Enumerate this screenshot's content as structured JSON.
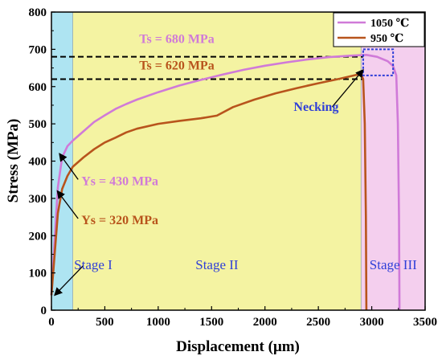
{
  "chart_data": {
    "type": "line",
    "xlabel": "Displacement (μm)",
    "ylabel": "Stress (MPa)",
    "xlim": [
      0,
      3500
    ],
    "ylim": [
      0,
      800
    ],
    "xticks": [
      "0",
      "500",
      "1000",
      "1500",
      "2000",
      "2500",
      "3000",
      "3500"
    ],
    "yticks": [
      "0",
      "100",
      "200",
      "300",
      "400",
      "500",
      "600",
      "700",
      "800"
    ],
    "grid": false,
    "legend_position": "top-right",
    "series": [
      {
        "name": "1050 ℃",
        "color": "#d07ad8",
        "points": [
          [
            0,
            40
          ],
          [
            30,
            190
          ],
          [
            60,
            330
          ],
          [
            100,
            410
          ],
          [
            150,
            440
          ],
          [
            200,
            455
          ],
          [
            300,
            480
          ],
          [
            400,
            505
          ],
          [
            500,
            523
          ],
          [
            600,
            540
          ],
          [
            700,
            553
          ],
          [
            800,
            565
          ],
          [
            1000,
            585
          ],
          [
            1200,
            603
          ],
          [
            1400,
            618
          ],
          [
            1600,
            632
          ],
          [
            1800,
            645
          ],
          [
            2000,
            656
          ],
          [
            2200,
            665
          ],
          [
            2400,
            673
          ],
          [
            2600,
            679
          ],
          [
            2800,
            683
          ],
          [
            2950,
            685
          ],
          [
            3050,
            680
          ],
          [
            3150,
            668
          ],
          [
            3200,
            655
          ],
          [
            3230,
            630
          ],
          [
            3245,
            500
          ],
          [
            3255,
            250
          ],
          [
            3260,
            0
          ]
        ]
      },
      {
        "name": "950 ℃",
        "color": "#b8541c",
        "points": [
          [
            0,
            40
          ],
          [
            30,
            150
          ],
          [
            60,
            260
          ],
          [
            100,
            325
          ],
          [
            150,
            360
          ],
          [
            200,
            385
          ],
          [
            300,
            410
          ],
          [
            400,
            432
          ],
          [
            500,
            450
          ],
          [
            600,
            463
          ],
          [
            700,
            477
          ],
          [
            800,
            487
          ],
          [
            1000,
            500
          ],
          [
            1200,
            508
          ],
          [
            1400,
            515
          ],
          [
            1550,
            522
          ],
          [
            1700,
            545
          ],
          [
            1900,
            565
          ],
          [
            2100,
            582
          ],
          [
            2300,
            596
          ],
          [
            2500,
            609
          ],
          [
            2700,
            621
          ],
          [
            2850,
            631
          ],
          [
            2900,
            633
          ],
          [
            2920,
            620
          ],
          [
            2935,
            500
          ],
          [
            2945,
            250
          ],
          [
            2950,
            0
          ]
        ]
      }
    ],
    "regions": [
      {
        "label": "Stage I",
        "x_range": [
          0,
          200
        ],
        "color": "#aee4f2"
      },
      {
        "label": "Stage II",
        "x_range": [
          200,
          2900
        ],
        "color": "#f4f3a2"
      },
      {
        "label": "Stage III",
        "x_range": [
          2900,
          3500
        ],
        "color": "#f4cfee"
      }
    ],
    "reference_lines": [
      {
        "value": 680,
        "label": "Ts = 680 MPa",
        "color": "#d07ad8"
      },
      {
        "value": 620,
        "label": "Ts = 620 MPa",
        "color": "#b8541c"
      }
    ],
    "annotations": [
      {
        "text": "Ys = 430 MPa",
        "color": "#d07ad8",
        "anchor": [
          75,
          420
        ],
        "label_at": [
          250,
          340
        ]
      },
      {
        "text": "Ys = 320 MPa",
        "color": "#b8541c",
        "anchor": [
          55,
          320
        ],
        "label_at": [
          250,
          235
        ]
      },
      {
        "text": "Necking",
        "color": "#2f3fd8",
        "anchor": [
          2920,
          645
        ],
        "label_at": [
          2630,
          535
        ]
      }
    ],
    "necking_box": {
      "x_range": [
        2920,
        3200
      ],
      "y_range": [
        630,
        700
      ],
      "color": "#2f3fd8"
    }
  }
}
